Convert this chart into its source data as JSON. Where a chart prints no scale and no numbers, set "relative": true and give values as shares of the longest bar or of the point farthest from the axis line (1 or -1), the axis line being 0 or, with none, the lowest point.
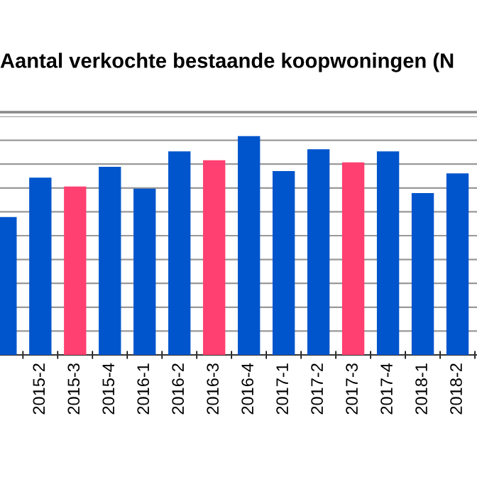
{
  "chart_data": {
    "type": "bar",
    "title": "Aantal verkochte bestaande koopwoningen (N",
    "categories": [
      null,
      "2015-2",
      "2015-3",
      "2015-4",
      "2016-1",
      "2016-2",
      "2016-3",
      "2016-4",
      "2017-1",
      "2017-2",
      "2017-3",
      "2017-4",
      "2018-1",
      "2018-2"
    ],
    "values": [
      0.63,
      0.81,
      0.77,
      0.86,
      0.76,
      0.93,
      0.89,
      1,
      0.84,
      0.94,
      0.88,
      0.93,
      0.74,
      0.83
    ],
    "colors": [
      "#0055cc",
      "#0055cc",
      "#ff4070",
      "#0055cc",
      "#0055cc",
      "#0055cc",
      "#ff4070",
      "#0055cc",
      "#0055cc",
      "#0055cc",
      "#ff4070",
      "#0055cc",
      "#0055cc",
      "#0055cc"
    ],
    "relative": true,
    "grid": "y"
  }
}
